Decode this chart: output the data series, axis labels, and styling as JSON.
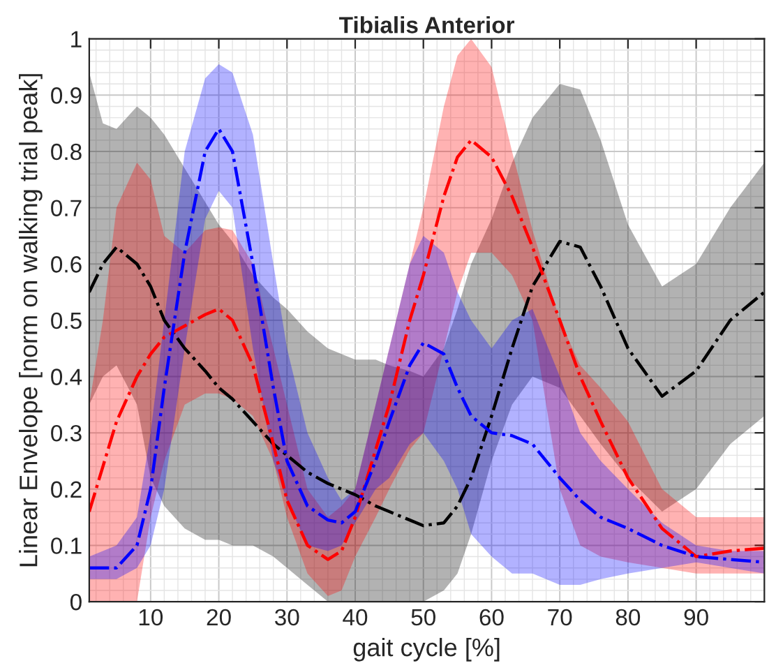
{
  "chart_data": {
    "type": "line",
    "title": "Tibialis Anterior",
    "xlabel": "gait cycle [%]",
    "ylabel": "Linear Envelope [norm on walking trial peak]",
    "x": [
      1,
      3,
      5,
      8,
      10,
      12,
      15,
      18,
      20,
      22,
      25,
      28,
      30,
      33,
      36,
      38,
      40,
      43,
      45,
      48,
      50,
      53,
      55,
      57,
      60,
      63,
      66,
      70,
      73,
      76,
      80,
      85,
      90,
      95,
      100
    ],
    "series": [
      {
        "color": "#000000",
        "values": [
          0.55,
          0.6,
          0.63,
          0.6,
          0.56,
          0.5,
          0.45,
          0.41,
          0.38,
          0.36,
          0.32,
          0.28,
          0.26,
          0.23,
          0.21,
          0.2,
          0.19,
          0.17,
          0.16,
          0.145,
          0.135,
          0.14,
          0.17,
          0.22,
          0.33,
          0.45,
          0.56,
          0.64,
          0.63,
          0.56,
          0.45,
          0.365,
          0.41,
          0.5,
          0.55
        ],
        "upper": [
          0.94,
          0.85,
          0.84,
          0.88,
          0.86,
          0.83,
          0.77,
          0.71,
          0.67,
          0.64,
          0.58,
          0.54,
          0.52,
          0.48,
          0.45,
          0.44,
          0.43,
          0.43,
          0.42,
          0.41,
          0.4,
          0.45,
          0.52,
          0.6,
          0.68,
          0.78,
          0.86,
          0.92,
          0.91,
          0.82,
          0.67,
          0.56,
          0.6,
          0.7,
          0.78
        ],
        "lower": [
          0.35,
          0.4,
          0.42,
          0.35,
          0.22,
          0.17,
          0.13,
          0.11,
          0.11,
          0.1,
          0.1,
          0.08,
          0.06,
          0.03,
          0.0,
          0.0,
          0.0,
          0.0,
          0.0,
          0.0,
          0.0,
          0.02,
          0.05,
          0.12,
          0.25,
          0.35,
          0.4,
          0.38,
          0.33,
          0.28,
          0.22,
          0.16,
          0.2,
          0.28,
          0.33
        ]
      },
      {
        "color": "#ff0000",
        "values": [
          0.16,
          0.24,
          0.32,
          0.4,
          0.44,
          0.47,
          0.49,
          0.51,
          0.52,
          0.5,
          0.42,
          0.28,
          0.18,
          0.1,
          0.075,
          0.09,
          0.15,
          0.27,
          0.35,
          0.5,
          0.58,
          0.72,
          0.79,
          0.82,
          0.79,
          0.72,
          0.63,
          0.5,
          0.4,
          0.32,
          0.22,
          0.13,
          0.08,
          0.09,
          0.095
        ],
        "upper": [
          0.35,
          0.5,
          0.7,
          0.78,
          0.75,
          0.65,
          0.62,
          0.66,
          0.665,
          0.66,
          0.6,
          0.45,
          0.35,
          0.2,
          0.15,
          0.17,
          0.2,
          0.35,
          0.45,
          0.6,
          0.7,
          0.88,
          0.97,
          1.0,
          0.95,
          0.8,
          0.66,
          0.5,
          0.42,
          0.38,
          0.32,
          0.2,
          0.15,
          0.15,
          0.15
        ],
        "lower": [
          0.0,
          0.0,
          0.0,
          0.0,
          0.15,
          0.25,
          0.35,
          0.37,
          0.37,
          0.36,
          0.33,
          0.25,
          0.15,
          0.05,
          0.01,
          0.02,
          0.08,
          0.15,
          0.2,
          0.27,
          0.3,
          0.45,
          0.55,
          0.62,
          0.62,
          0.58,
          0.5,
          0.2,
          0.1,
          0.08,
          0.07,
          0.06,
          0.05,
          0.05,
          0.05
        ]
      },
      {
        "color": "#0000ff",
        "values": [
          0.06,
          0.06,
          0.06,
          0.1,
          0.2,
          0.38,
          0.62,
          0.8,
          0.84,
          0.8,
          0.6,
          0.38,
          0.25,
          0.17,
          0.145,
          0.14,
          0.16,
          0.25,
          0.32,
          0.42,
          0.46,
          0.44,
          0.38,
          0.33,
          0.3,
          0.295,
          0.28,
          0.22,
          0.18,
          0.15,
          0.13,
          0.1,
          0.08,
          0.075,
          0.07
        ],
        "upper": [
          0.08,
          0.09,
          0.1,
          0.15,
          0.3,
          0.5,
          0.8,
          0.93,
          0.955,
          0.94,
          0.83,
          0.6,
          0.45,
          0.3,
          0.22,
          0.18,
          0.2,
          0.35,
          0.45,
          0.6,
          0.65,
          0.62,
          0.55,
          0.5,
          0.45,
          0.5,
          0.52,
          0.4,
          0.3,
          0.25,
          0.2,
          0.14,
          0.1,
          0.09,
          0.09
        ],
        "lower": [
          0.04,
          0.04,
          0.04,
          0.06,
          0.1,
          0.2,
          0.45,
          0.68,
          0.73,
          0.7,
          0.45,
          0.25,
          0.18,
          0.1,
          0.09,
          0.1,
          0.14,
          0.2,
          0.22,
          0.28,
          0.3,
          0.25,
          0.2,
          0.12,
          0.08,
          0.05,
          0.05,
          0.03,
          0.03,
          0.04,
          0.05,
          0.06,
          0.07,
          0.06,
          0.05
        ]
      }
    ],
    "xlim": [
      1,
      100
    ],
    "xticks": [
      10,
      20,
      30,
      40,
      50,
      60,
      70,
      80,
      90
    ],
    "ylim": [
      0,
      1
    ],
    "yticks": [
      0,
      0.1,
      0.2,
      0.3,
      0.4,
      0.5,
      0.6,
      0.7,
      0.8,
      0.9,
      1
    ],
    "grid": true,
    "line_style": "dashed",
    "marker": "none"
  }
}
